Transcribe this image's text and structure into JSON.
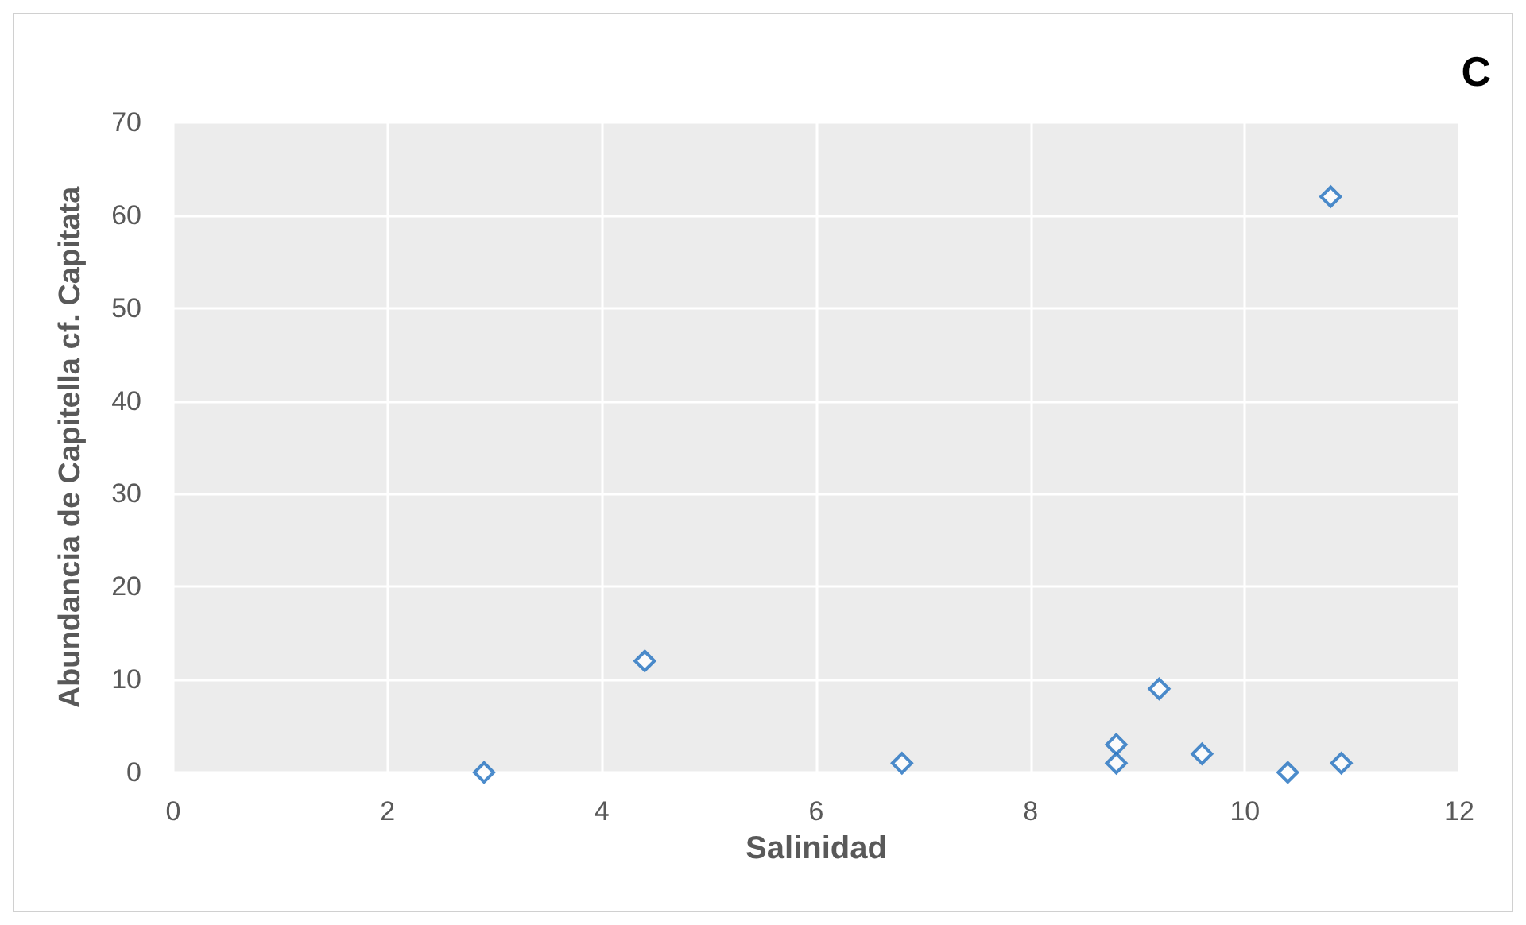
{
  "chart_data": {
    "type": "scatter",
    "title": "C",
    "xlabel": "Salinidad",
    "ylabel": "Abundancia de Capitella cf. Capitata",
    "x": [
      2.9,
      4.4,
      6.8,
      8.8,
      8.8,
      9.2,
      9.6,
      10.4,
      10.8,
      10.9
    ],
    "series": [
      {
        "color": "#1f6fbf",
        "values": [
          0,
          12,
          1,
          3,
          1,
          9,
          2,
          0,
          62,
          1
        ]
      }
    ],
    "xlim": [
      0,
      12
    ],
    "xticks": [
      0,
      2,
      4,
      6,
      8,
      10,
      12
    ],
    "ylim": [
      0,
      70
    ],
    "yticks": [
      0,
      10,
      20,
      30,
      40,
      50,
      60,
      70
    ],
    "grid": true,
    "marker": "diamond"
  }
}
